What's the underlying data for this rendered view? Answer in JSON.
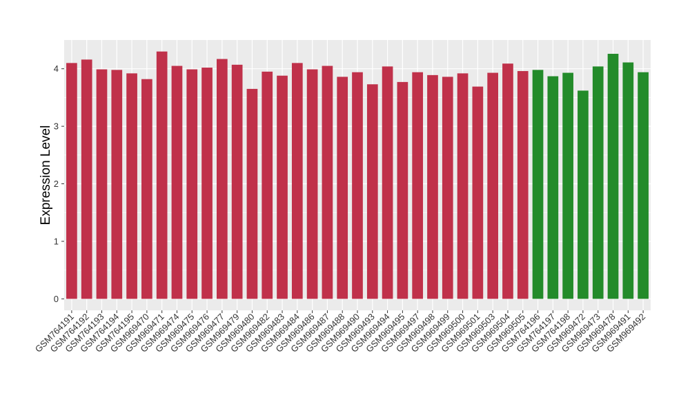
{
  "chart_data": {
    "type": "bar",
    "title": "",
    "xlabel": "",
    "ylabel": "Expression Level",
    "ylim": [
      -0.2,
      4.5
    ],
    "yticks": [
      0,
      1,
      2,
      3,
      4
    ],
    "grid": true,
    "legend": "none",
    "colors": {
      "group1": "#c0314a",
      "group2": "#238b2a",
      "panel_bg": "#ebebeb",
      "grid": "#ffffff"
    },
    "categories": [
      "GSM764191",
      "GSM764192",
      "GSM764193",
      "GSM764194",
      "GSM764195",
      "GSM969470",
      "GSM969471",
      "GSM969474",
      "GSM969475",
      "GSM969476",
      "GSM969477",
      "GSM969479",
      "GSM969480",
      "GSM969482",
      "GSM969483",
      "GSM969484",
      "GSM969486",
      "GSM969487",
      "GSM969488",
      "GSM969490",
      "GSM969493",
      "GSM969494",
      "GSM969495",
      "GSM969497",
      "GSM969498",
      "GSM969499",
      "GSM969500",
      "GSM969501",
      "GSM969503",
      "GSM969504",
      "GSM969505",
      "GSM764196",
      "GSM764197",
      "GSM764198",
      "GSM969472",
      "GSM969473",
      "GSM969478",
      "GSM969491",
      "GSM969492"
    ],
    "values": [
      4.1,
      4.16,
      3.99,
      3.98,
      3.92,
      3.82,
      4.3,
      4.05,
      3.99,
      4.02,
      4.17,
      4.07,
      3.65,
      3.95,
      3.88,
      4.1,
      3.99,
      4.05,
      3.86,
      3.94,
      3.73,
      4.04,
      3.77,
      3.94,
      3.89,
      3.86,
      3.92,
      3.69,
      3.93,
      4.09,
      3.96,
      3.98,
      3.87,
      3.93,
      3.62,
      4.04,
      4.26,
      4.11,
      3.94
    ],
    "groups": [
      "group1",
      "group1",
      "group1",
      "group1",
      "group1",
      "group1",
      "group1",
      "group1",
      "group1",
      "group1",
      "group1",
      "group1",
      "group1",
      "group1",
      "group1",
      "group1",
      "group1",
      "group1",
      "group1",
      "group1",
      "group1",
      "group1",
      "group1",
      "group1",
      "group1",
      "group1",
      "group1",
      "group1",
      "group1",
      "group1",
      "group1",
      "group2",
      "group2",
      "group2",
      "group2",
      "group2",
      "group2",
      "group2",
      "group2"
    ]
  }
}
